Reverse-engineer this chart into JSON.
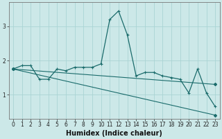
{
  "title": "",
  "xlabel": "Humidex (Indice chaleur)",
  "background_color": "#cce8e8",
  "grid_color": "#aad4d4",
  "line_color": "#1a6b6b",
  "x": [
    0,
    1,
    2,
    3,
    4,
    5,
    6,
    7,
    8,
    9,
    10,
    11,
    12,
    13,
    14,
    15,
    16,
    17,
    18,
    19,
    20,
    21,
    22,
    23
  ],
  "y_main": [
    1.75,
    1.85,
    1.85,
    1.45,
    1.45,
    1.75,
    1.7,
    1.8,
    1.8,
    1.8,
    1.9,
    3.2,
    3.45,
    2.75,
    1.55,
    1.65,
    1.65,
    1.55,
    1.5,
    1.45,
    1.05,
    1.75,
    1.05,
    0.65
  ],
  "y_trend_steep": [
    1.75,
    1.62,
    1.5,
    1.42,
    1.35,
    1.27,
    1.2,
    1.12,
    1.05,
    0.97,
    0.9,
    0.82,
    0.75,
    0.7,
    0.65,
    0.6,
    0.57,
    0.55,
    0.52,
    0.5,
    0.48,
    0.45,
    0.43,
    0.4
  ],
  "y_trend_flat": [
    1.75,
    1.73,
    1.7,
    1.68,
    1.66,
    1.64,
    1.62,
    1.6,
    1.57,
    1.55,
    1.53,
    1.51,
    1.49,
    1.47,
    1.45,
    1.43,
    1.41,
    1.4,
    1.38,
    1.37,
    1.35,
    1.33,
    1.32,
    1.3
  ],
  "ylim": [
    0.3,
    3.7
  ],
  "xlim": [
    -0.5,
    23.5
  ],
  "yticks": [
    1,
    2,
    3
  ],
  "xticks": [
    0,
    1,
    2,
    3,
    4,
    5,
    6,
    7,
    8,
    9,
    10,
    11,
    12,
    13,
    14,
    15,
    16,
    17,
    18,
    19,
    20,
    21,
    22,
    23
  ],
  "tick_fontsize": 5.5,
  "label_fontsize": 7.0
}
